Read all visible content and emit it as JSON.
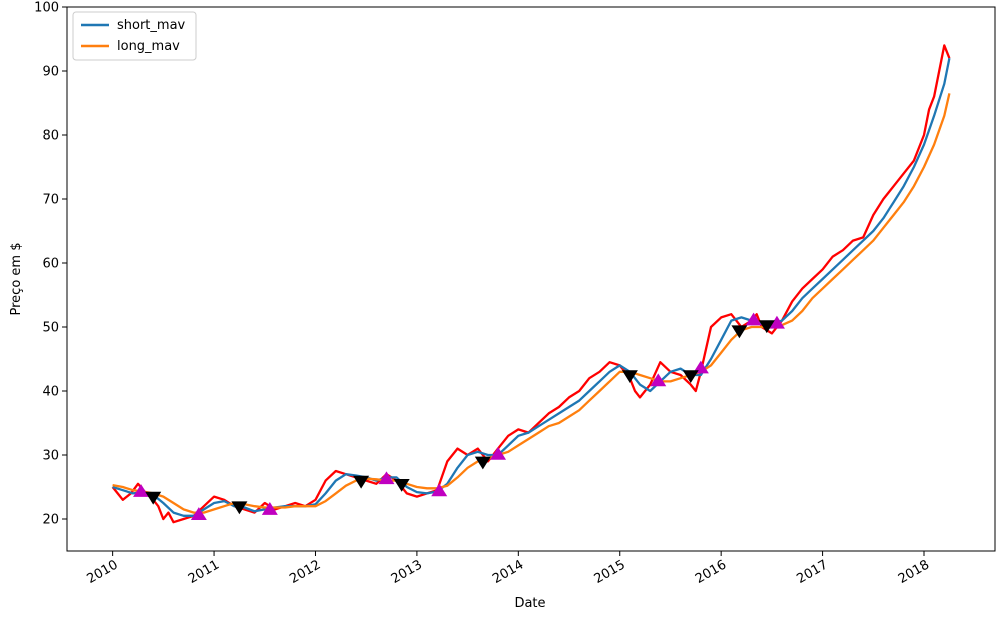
{
  "chart_data": {
    "type": "line",
    "title": "",
    "xlabel": "Date",
    "ylabel": "Preço em $",
    "xlim": [
      2009.55,
      2018.7
    ],
    "ylim": [
      15,
      100
    ],
    "x_ticks": [
      2010,
      2011,
      2012,
      2013,
      2014,
      2015,
      2016,
      2017,
      2018
    ],
    "x_tick_labels": [
      "2010",
      "2011",
      "2012",
      "2013",
      "2014",
      "2015",
      "2016",
      "2017",
      "2018"
    ],
    "y_ticks": [
      20,
      30,
      40,
      50,
      60,
      70,
      80,
      90,
      100
    ],
    "y_tick_labels": [
      "20",
      "30",
      "40",
      "50",
      "60",
      "70",
      "80",
      "90",
      "100"
    ],
    "grid": false,
    "legend": {
      "position": "upper-left",
      "entries": [
        "short_mav",
        "long_mav"
      ]
    },
    "series": [
      {
        "name": "price",
        "color": "#ff0000",
        "x": [
          2010.0,
          2010.05,
          2010.1,
          2010.18,
          2010.25,
          2010.33,
          2010.4,
          2010.45,
          2010.5,
          2010.55,
          2010.6,
          2010.7,
          2010.8,
          2010.9,
          2011.0,
          2011.1,
          2011.2,
          2011.3,
          2011.4,
          2011.5,
          2011.6,
          2011.7,
          2011.8,
          2011.9,
          2012.0,
          2012.1,
          2012.2,
          2012.3,
          2012.4,
          2012.5,
          2012.6,
          2012.7,
          2012.8,
          2012.9,
          2013.0,
          2013.1,
          2013.2,
          2013.3,
          2013.4,
          2013.5,
          2013.6,
          2013.7,
          2013.8,
          2013.9,
          2014.0,
          2014.1,
          2014.2,
          2014.3,
          2014.4,
          2014.5,
          2014.6,
          2014.7,
          2014.8,
          2014.9,
          2015.0,
          2015.1,
          2015.15,
          2015.2,
          2015.3,
          2015.4,
          2015.5,
          2015.6,
          2015.7,
          2015.75,
          2015.8,
          2015.9,
          2016.0,
          2016.1,
          2016.2,
          2016.3,
          2016.35,
          2016.4,
          2016.5,
          2016.6,
          2016.7,
          2016.8,
          2016.9,
          2017.0,
          2017.1,
          2017.2,
          2017.3,
          2017.4,
          2017.5,
          2017.6,
          2017.7,
          2017.8,
          2017.9,
          2018.0,
          2018.05,
          2018.1,
          2018.15,
          2018.2,
          2018.25
        ],
        "values": [
          25.0,
          24.0,
          23.0,
          24.0,
          25.5,
          24.0,
          23.0,
          22.0,
          20.0,
          21.0,
          19.5,
          20.0,
          20.5,
          22.0,
          23.5,
          23.0,
          22.0,
          21.5,
          21.0,
          22.5,
          21.5,
          22.0,
          22.5,
          22.0,
          23.0,
          26.0,
          27.5,
          27.0,
          26.5,
          26.0,
          25.5,
          27.0,
          26.0,
          24.0,
          23.5,
          24.0,
          24.5,
          29.0,
          31.0,
          30.0,
          31.0,
          29.0,
          31.0,
          33.0,
          34.0,
          33.5,
          35.0,
          36.5,
          37.5,
          39.0,
          40.0,
          42.0,
          43.0,
          44.5,
          44.0,
          42.0,
          40.0,
          39.0,
          41.0,
          44.5,
          43.0,
          42.5,
          41.0,
          40.0,
          43.0,
          50.0,
          51.5,
          52.0,
          50.0,
          51.0,
          52.0,
          50.0,
          49.0,
          51.0,
          54.0,
          56.0,
          57.5,
          59.0,
          61.0,
          62.0,
          63.5,
          64.0,
          67.5,
          70.0,
          72.0,
          74.0,
          76.0,
          80.0,
          84.0,
          86.0,
          90.0,
          94.0,
          92.0
        ]
      },
      {
        "name": "short_mav",
        "color": "#1f77b4",
        "x": [
          2010.0,
          2010.1,
          2010.2,
          2010.3,
          2010.4,
          2010.5,
          2010.6,
          2010.7,
          2010.8,
          2010.9,
          2011.0,
          2011.1,
          2011.2,
          2011.3,
          2011.4,
          2011.5,
          2011.6,
          2011.7,
          2011.8,
          2011.9,
          2012.0,
          2012.1,
          2012.2,
          2012.3,
          2012.4,
          2012.5,
          2012.6,
          2012.7,
          2012.8,
          2012.9,
          2013.0,
          2013.1,
          2013.2,
          2013.3,
          2013.4,
          2013.5,
          2013.6,
          2013.7,
          2013.8,
          2013.9,
          2014.0,
          2014.1,
          2014.2,
          2014.3,
          2014.4,
          2014.5,
          2014.6,
          2014.7,
          2014.8,
          2014.9,
          2015.0,
          2015.1,
          2015.2,
          2015.3,
          2015.4,
          2015.5,
          2015.6,
          2015.7,
          2015.8,
          2015.9,
          2016.0,
          2016.1,
          2016.2,
          2016.3,
          2016.4,
          2016.5,
          2016.6,
          2016.7,
          2016.8,
          2016.9,
          2017.0,
          2017.1,
          2017.2,
          2017.3,
          2017.4,
          2017.5,
          2017.6,
          2017.7,
          2017.8,
          2017.9,
          2018.0,
          2018.1,
          2018.2,
          2018.25
        ],
        "values": [
          25.0,
          24.5,
          24.0,
          24.2,
          23.8,
          22.5,
          21.0,
          20.5,
          20.5,
          21.5,
          22.5,
          22.8,
          22.0,
          21.8,
          21.2,
          21.5,
          21.8,
          22.0,
          22.0,
          22.0,
          22.3,
          24.0,
          26.0,
          27.0,
          26.8,
          26.5,
          26.0,
          26.5,
          26.5,
          25.0,
          24.2,
          24.0,
          24.3,
          25.5,
          28.0,
          30.0,
          30.5,
          30.0,
          30.0,
          31.5,
          33.0,
          33.5,
          34.5,
          35.5,
          36.5,
          37.5,
          38.5,
          40.0,
          41.5,
          43.0,
          44.0,
          43.0,
          41.0,
          40.0,
          41.5,
          43.0,
          43.5,
          42.5,
          42.5,
          45.0,
          48.0,
          51.0,
          51.5,
          51.0,
          50.5,
          50.5,
          51.0,
          52.5,
          54.5,
          56.0,
          57.5,
          59.0,
          60.5,
          62.0,
          63.5,
          65.0,
          67.0,
          69.5,
          72.0,
          75.0,
          78.5,
          83.0,
          88.0,
          92.0
        ]
      },
      {
        "name": "long_mav",
        "color": "#ff7f0e",
        "x": [
          2010.0,
          2010.1,
          2010.2,
          2010.3,
          2010.4,
          2010.5,
          2010.6,
          2010.7,
          2010.8,
          2010.9,
          2011.0,
          2011.1,
          2011.2,
          2011.3,
          2011.4,
          2011.5,
          2011.6,
          2011.7,
          2011.8,
          2011.9,
          2012.0,
          2012.1,
          2012.2,
          2012.3,
          2012.4,
          2012.5,
          2012.6,
          2012.7,
          2012.8,
          2012.9,
          2013.0,
          2013.1,
          2013.2,
          2013.3,
          2013.4,
          2013.5,
          2013.6,
          2013.7,
          2013.8,
          2013.9,
          2014.0,
          2014.1,
          2014.2,
          2014.3,
          2014.4,
          2014.5,
          2014.6,
          2014.7,
          2014.8,
          2014.9,
          2015.0,
          2015.1,
          2015.2,
          2015.3,
          2015.4,
          2015.5,
          2015.6,
          2015.7,
          2015.8,
          2015.9,
          2016.0,
          2016.1,
          2016.2,
          2016.3,
          2016.4,
          2016.5,
          2016.6,
          2016.7,
          2016.8,
          2016.9,
          2017.0,
          2017.1,
          2017.2,
          2017.3,
          2017.4,
          2017.5,
          2017.6,
          2017.7,
          2017.8,
          2017.9,
          2018.0,
          2018.1,
          2018.2,
          2018.25
        ],
        "values": [
          25.3,
          25.0,
          24.5,
          24.3,
          24.0,
          23.5,
          22.5,
          21.5,
          21.0,
          21.0,
          21.5,
          22.0,
          22.5,
          22.3,
          22.0,
          21.8,
          21.8,
          21.8,
          22.0,
          22.0,
          22.0,
          22.8,
          24.0,
          25.2,
          26.0,
          26.3,
          26.2,
          26.0,
          26.0,
          25.5,
          25.0,
          24.8,
          24.8,
          25.2,
          26.5,
          28.0,
          29.0,
          29.5,
          30.0,
          30.5,
          31.5,
          32.5,
          33.5,
          34.5,
          35.0,
          36.0,
          37.0,
          38.5,
          40.0,
          41.5,
          43.0,
          43.0,
          42.5,
          42.0,
          41.5,
          41.5,
          42.0,
          42.5,
          43.0,
          44.0,
          46.0,
          48.0,
          49.5,
          50.0,
          50.0,
          50.0,
          50.3,
          51.0,
          52.5,
          54.5,
          56.0,
          57.5,
          59.0,
          60.5,
          62.0,
          63.5,
          65.5,
          67.5,
          69.5,
          72.0,
          75.0,
          78.5,
          83.0,
          86.5
        ]
      }
    ],
    "buy_markers": {
      "color": "#c000c0",
      "shape": "triangle-up",
      "x": [
        2010.28,
        2010.85,
        2011.55,
        2012.7,
        2013.22,
        2013.8,
        2015.38,
        2015.8,
        2016.32,
        2016.55
      ],
      "y": [
        24.2,
        20.6,
        21.4,
        26.2,
        24.3,
        30.0,
        41.5,
        43.5,
        51.0,
        50.5
      ]
    },
    "sell_markers": {
      "color": "#000000",
      "shape": "triangle-down",
      "x": [
        2010.4,
        2011.25,
        2012.45,
        2012.85,
        2013.65,
        2015.1,
        2015.7,
        2016.18,
        2016.45
      ],
      "y": [
        23.5,
        22.0,
        26.0,
        25.5,
        29.0,
        42.5,
        42.5,
        49.5,
        50.3
      ]
    }
  }
}
